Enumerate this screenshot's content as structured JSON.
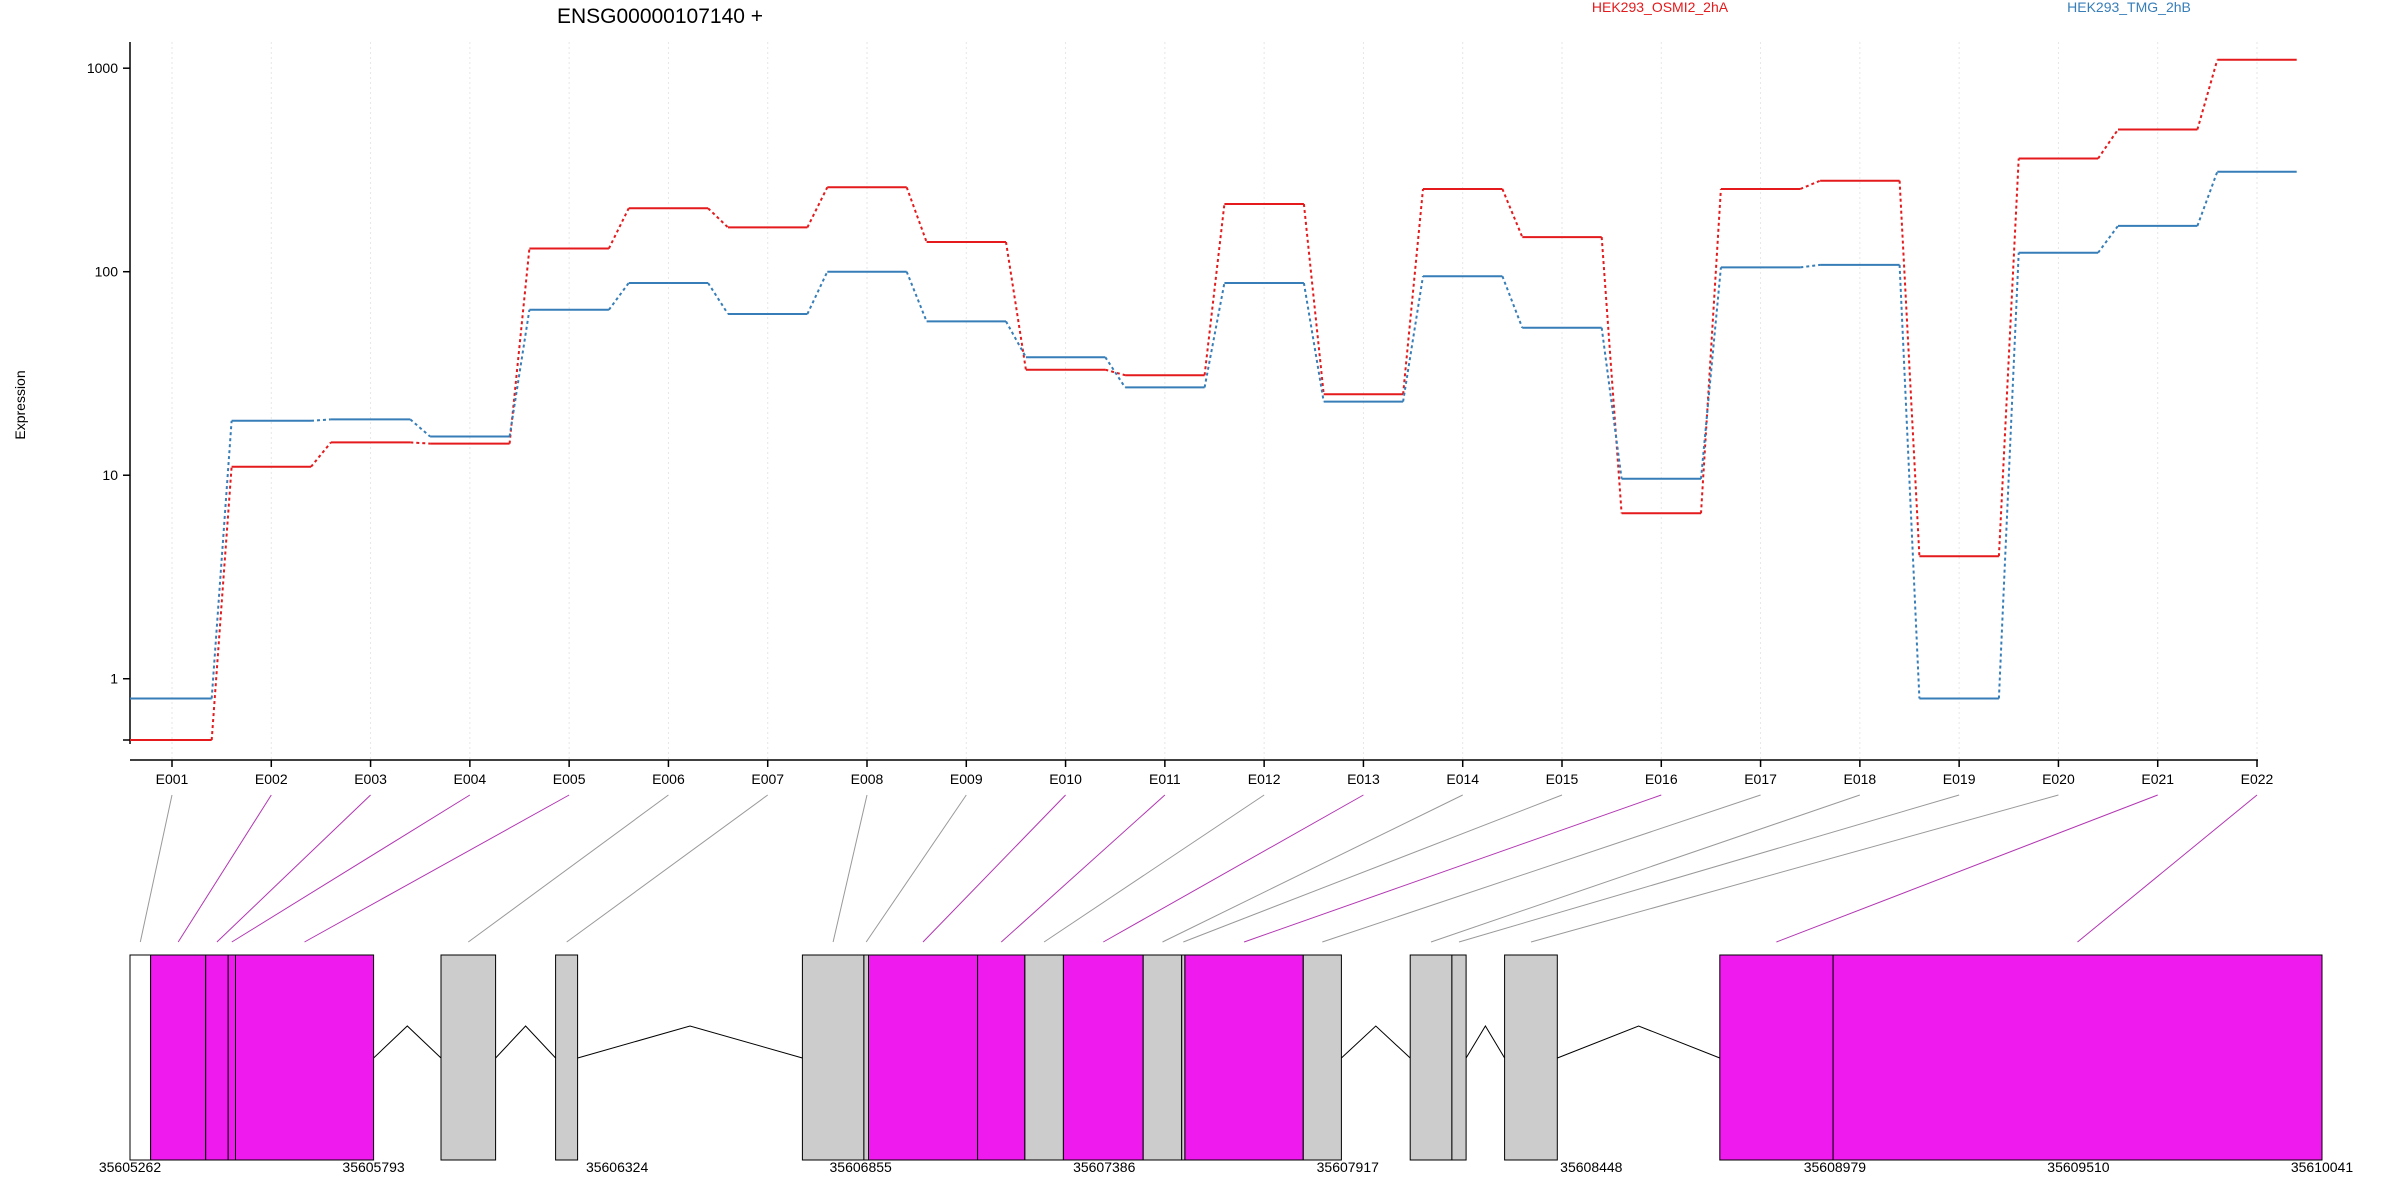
{
  "chart_data": {
    "type": "line",
    "title": "ENSG00000107140 +",
    "ylabel": "Expression",
    "xlabel": "",
    "y_scale": "log",
    "ylim": [
      0.5,
      1300
    ],
    "y_ticks": [
      1,
      10,
      100,
      1000
    ],
    "y_tick_labels": [
      "1",
      "10",
      "100",
      "1000"
    ],
    "grid": "vertical dotted lines at each exon",
    "legend_placement": "top-right",
    "categories": [
      "E001",
      "E002",
      "E003",
      "E004",
      "E005",
      "E006",
      "E007",
      "E008",
      "E009",
      "E010",
      "E011",
      "E012",
      "E013",
      "E014",
      "E015",
      "E016",
      "E017",
      "E018",
      "E019",
      "E020",
      "E021",
      "E022"
    ],
    "series": [
      {
        "name": "HEK293_OSMI2_2hA",
        "color": "#e41a1c",
        "values": [
          0.5,
          11,
          14.5,
          14.3,
          130,
          205,
          165,
          260,
          140,
          33,
          31,
          215,
          25,
          255,
          148,
          6.5,
          255,
          280,
          4,
          360,
          500,
          1100
        ]
      },
      {
        "name": "HEK293_TMG_2hB",
        "color": "#377eb8",
        "values": [
          0.8,
          18.5,
          18.8,
          15.5,
          65,
          88,
          62,
          100,
          57,
          38,
          27,
          88,
          23,
          95,
          53,
          9.6,
          105,
          108,
          0.8,
          124,
          168,
          310
        ]
      }
    ],
    "gene_model": {
      "genomic_ticks": [
        "35605262",
        "35605793",
        "35606324",
        "35606855",
        "35607386",
        "35607917",
        "35608448",
        "35608979",
        "35609510",
        "35610041"
      ],
      "range": [
        35605262,
        35610041
      ],
      "exon_bins": [
        {
          "id": "E001",
          "start": 35605262,
          "end": 35605307,
          "color": "#ffffff",
          "significant": false
        },
        {
          "id": "E002",
          "start": 35605307,
          "end": 35605427,
          "color": "#ee1aee",
          "significant": true
        },
        {
          "id": "E003",
          "start": 35605427,
          "end": 35605476,
          "color": "#ee1aee",
          "significant": true
        },
        {
          "id": "E004",
          "start": 35605476,
          "end": 35605492,
          "color": "#ee1aee",
          "significant": true
        },
        {
          "id": "E005",
          "start": 35605492,
          "end": 35605793,
          "color": "#ee1aee",
          "significant": true
        },
        {
          "id": "E006",
          "start": 35605940,
          "end": 35606059,
          "color": "#cccccc",
          "significant": false
        },
        {
          "id": "E007",
          "start": 35606190,
          "end": 35606238,
          "color": "#cccccc",
          "significant": false
        },
        {
          "id": "E008",
          "start": 35606728,
          "end": 35606862,
          "color": "#cccccc",
          "significant": false
        },
        {
          "id": "E009",
          "start": 35606862,
          "end": 35606872,
          "color": "#cccccc",
          "significant": false
        },
        {
          "id": "E010",
          "start": 35606872,
          "end": 35607110,
          "color": "#ee1aee",
          "significant": true
        },
        {
          "id": "E011",
          "start": 35607110,
          "end": 35607213,
          "color": "#ee1aee",
          "significant": true
        },
        {
          "id": "E012",
          "start": 35607213,
          "end": 35607297,
          "color": "#cccccc",
          "significant": false
        },
        {
          "id": "E013",
          "start": 35607297,
          "end": 35607471,
          "color": "#ee1aee",
          "significant": true
        },
        {
          "id": "E014",
          "start": 35607471,
          "end": 35607555,
          "color": "#cccccc",
          "significant": false
        },
        {
          "id": "E015",
          "start": 35607555,
          "end": 35607562,
          "color": "#cccccc",
          "significant": false
        },
        {
          "id": "E016",
          "start": 35607562,
          "end": 35607820,
          "color": "#ee1aee",
          "significant": true
        },
        {
          "id": "E017",
          "start": 35607820,
          "end": 35607903,
          "color": "#cccccc",
          "significant": false
        },
        {
          "id": "E018",
          "start": 35608053,
          "end": 35608144,
          "color": "#cccccc",
          "significant": false
        },
        {
          "id": "E019",
          "start": 35608144,
          "end": 35608175,
          "color": "#cccccc",
          "significant": false
        },
        {
          "id": "E020",
          "start": 35608259,
          "end": 35608374,
          "color": "#cccccc",
          "significant": false
        },
        {
          "id": "E021",
          "start": 35608728,
          "end": 35608975,
          "color": "#ee1aee",
          "significant": true
        },
        {
          "id": "E022",
          "start": 35608975,
          "end": 35610041,
          "color": "#ee1aee",
          "significant": true
        }
      ],
      "introns": [
        [
          35605793,
          35605940
        ],
        [
          35606059,
          35606190
        ],
        [
          35606238,
          35606728
        ],
        [
          35607903,
          35608053
        ],
        [
          35608175,
          35608259
        ],
        [
          35608374,
          35608728
        ]
      ]
    }
  }
}
